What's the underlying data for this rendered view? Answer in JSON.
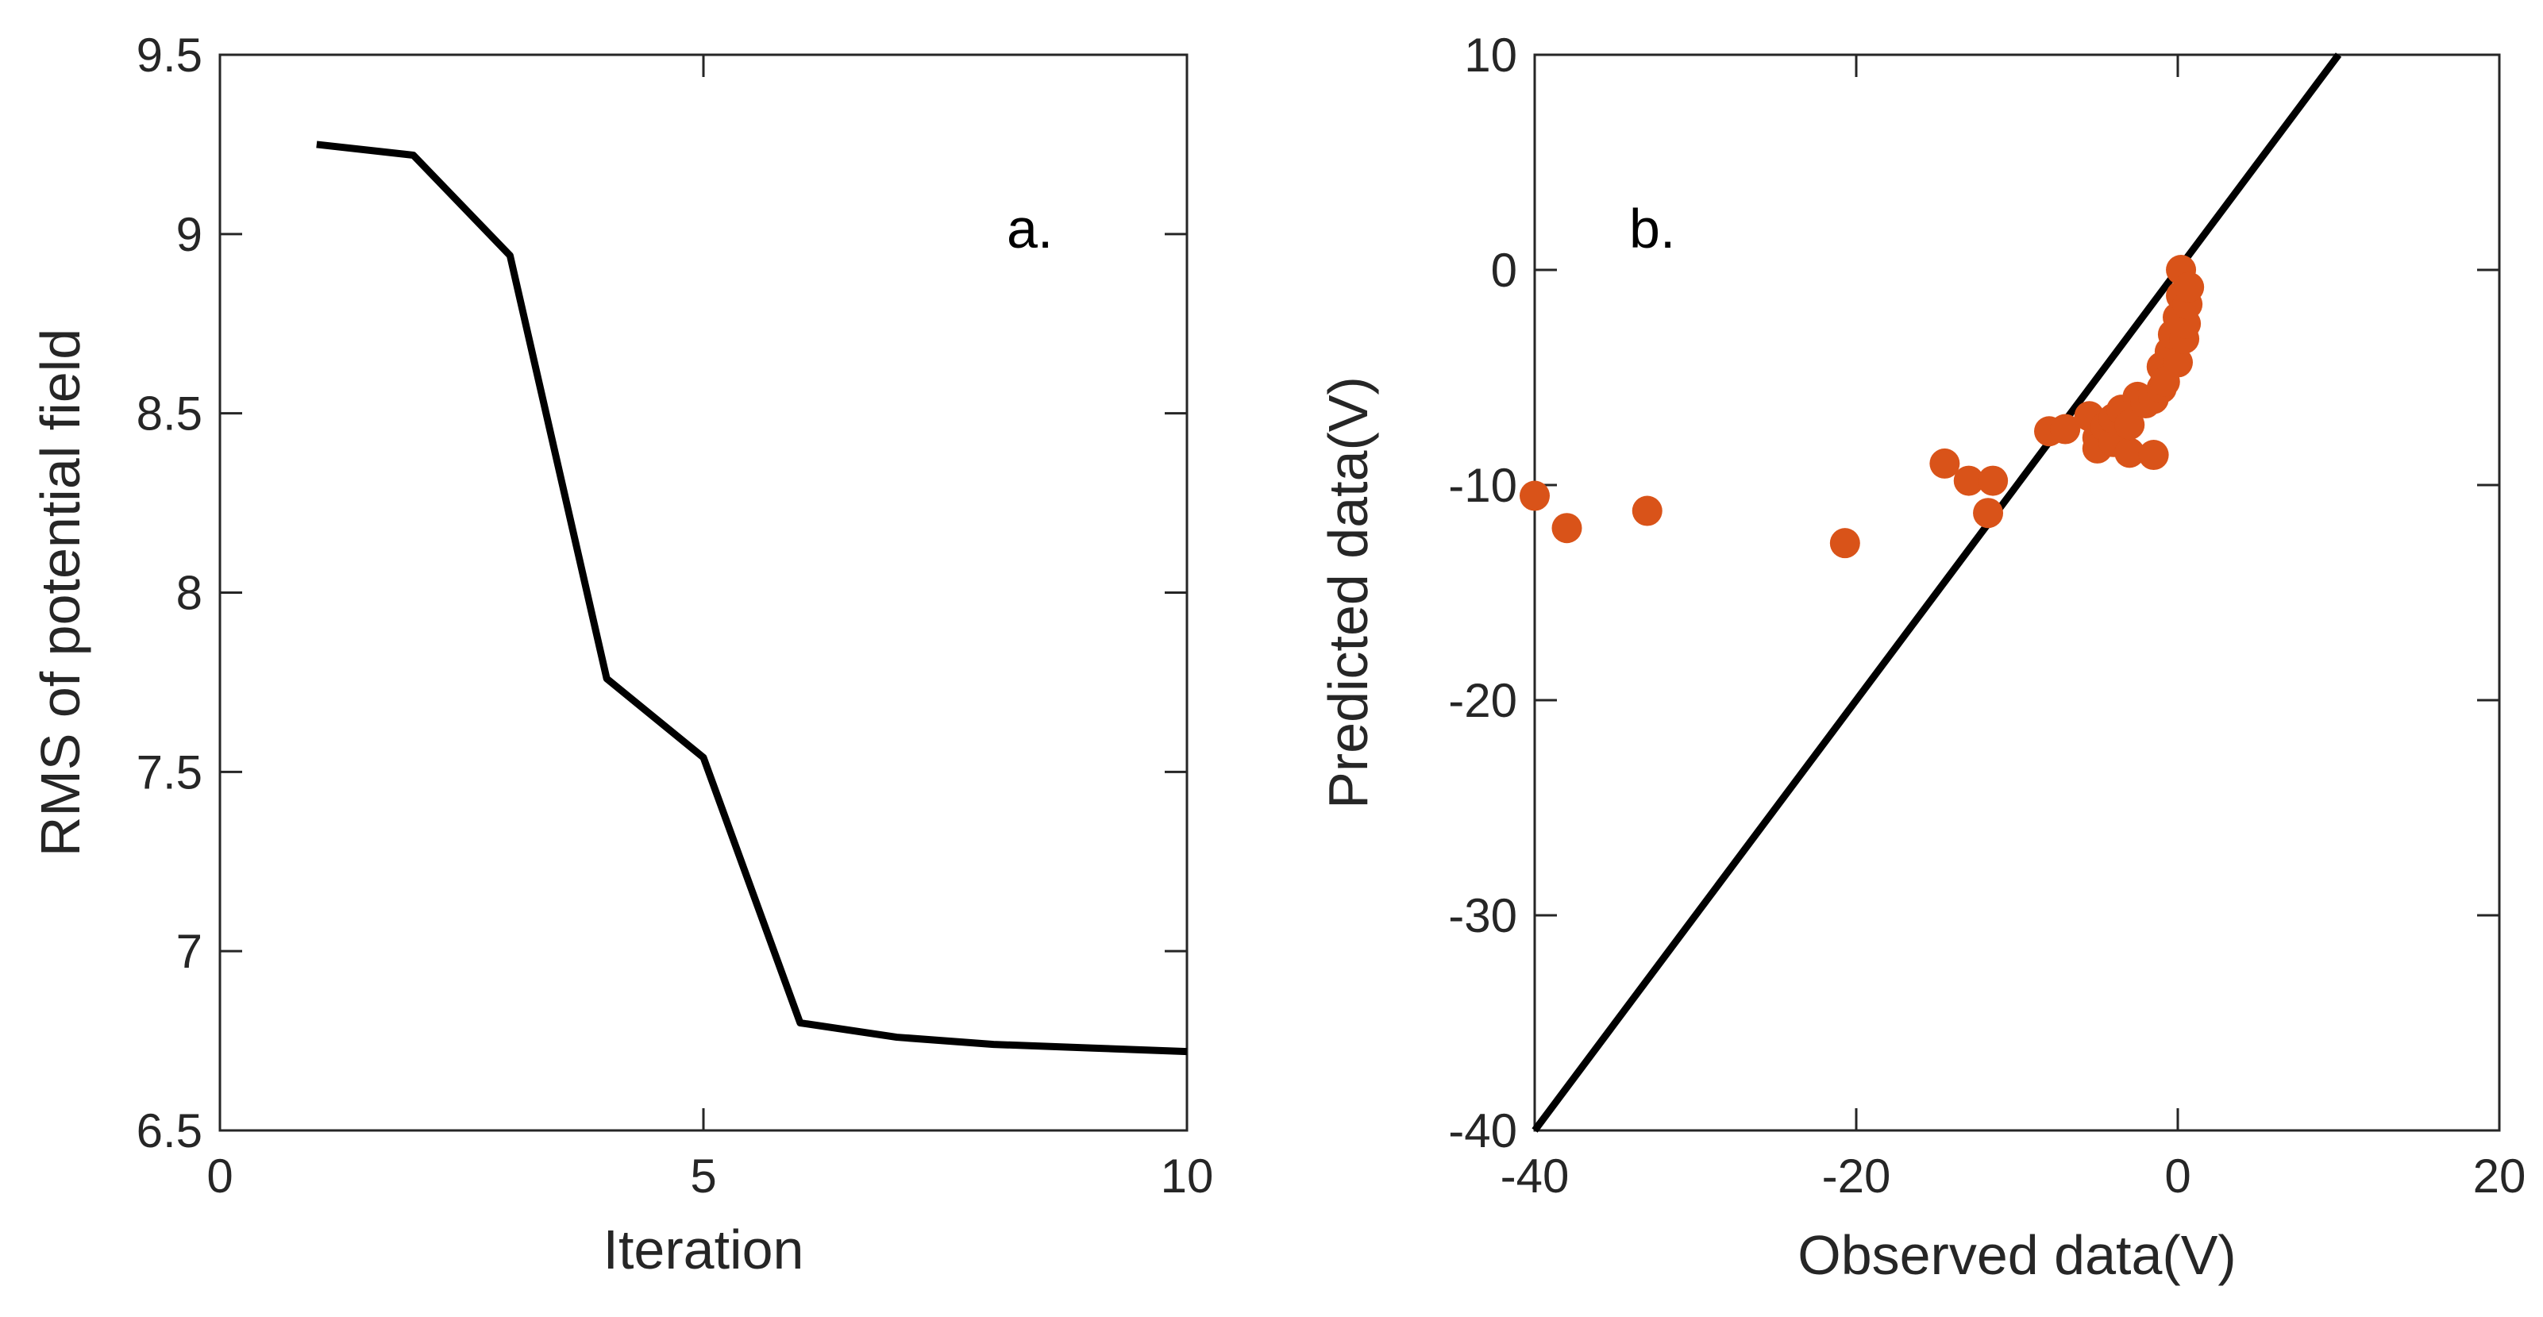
{
  "chart_data": [
    {
      "type": "line",
      "panel_label": "a.",
      "xlabel": "Iteration",
      "ylabel": "RMS of potential field",
      "xlim": [
        0,
        10
      ],
      "ylim": [
        6.5,
        9.5
      ],
      "xticks": [
        0,
        5,
        10
      ],
      "xtick_labels": [
        "0",
        "5",
        "10"
      ],
      "yticks": [
        6.5,
        7,
        7.5,
        8,
        8.5,
        9,
        9.5
      ],
      "ytick_labels": [
        "6.5",
        "7",
        "7.5",
        "8",
        "8.5",
        "9",
        "9.5"
      ],
      "line_color": "#000000",
      "series": [
        {
          "name": "RMS",
          "x": [
            1,
            2,
            3,
            4,
            5,
            6,
            7,
            8,
            9,
            10
          ],
          "y": [
            9.25,
            9.22,
            8.94,
            7.76,
            7.54,
            6.8,
            6.76,
            6.74,
            6.73,
            6.72
          ]
        }
      ]
    },
    {
      "type": "scatter",
      "panel_label": "b.",
      "xlabel": "Observed data(V)",
      "ylabel": "Predicted data(V)",
      "xlim": [
        -40,
        20
      ],
      "ylim": [
        -40,
        10
      ],
      "xticks": [
        -40,
        -20,
        0,
        20
      ],
      "xtick_labels": [
        "-40",
        "-20",
        "0",
        "20"
      ],
      "yticks": [
        -40,
        -30,
        -20,
        -10,
        0,
        10
      ],
      "ytick_labels": [
        "-40",
        "-30",
        "-20",
        "-10",
        "0",
        "10"
      ],
      "reference_line": {
        "x": [
          -40,
          10
        ],
        "y": [
          -40,
          10
        ],
        "color": "#000000"
      },
      "marker_color": "#D95319",
      "points": [
        {
          "x": -40.0,
          "y": -10.5
        },
        {
          "x": -38.0,
          "y": -12.0
        },
        {
          "x": -33.0,
          "y": -11.2
        },
        {
          "x": -20.7,
          "y": -12.7
        },
        {
          "x": -14.5,
          "y": -9.0
        },
        {
          "x": -13.0,
          "y": -9.8
        },
        {
          "x": -11.8,
          "y": -11.3
        },
        {
          "x": -11.5,
          "y": -9.8
        },
        {
          "x": -8.0,
          "y": -7.5
        },
        {
          "x": -7.0,
          "y": -7.4
        },
        {
          "x": -5.5,
          "y": -6.8
        },
        {
          "x": -5.0,
          "y": -7.8
        },
        {
          "x": -5.0,
          "y": -8.3
        },
        {
          "x": -4.5,
          "y": -7.3
        },
        {
          "x": -4.0,
          "y": -8.0
        },
        {
          "x": -4.0,
          "y": -6.9
        },
        {
          "x": -3.5,
          "y": -6.5
        },
        {
          "x": -3.0,
          "y": -8.5
        },
        {
          "x": -3.0,
          "y": -7.2
        },
        {
          "x": -2.5,
          "y": -5.9
        },
        {
          "x": -2.0,
          "y": -6.2
        },
        {
          "x": -1.5,
          "y": -6.0
        },
        {
          "x": -1.5,
          "y": -8.6
        },
        {
          "x": -1.0,
          "y": -5.5
        },
        {
          "x": -1.0,
          "y": -4.5
        },
        {
          "x": -0.8,
          "y": -5.2
        },
        {
          "x": -0.5,
          "y": -3.8
        },
        {
          "x": -0.3,
          "y": -3.0
        },
        {
          "x": 0.0,
          "y": -4.3
        },
        {
          "x": 0.0,
          "y": -2.2
        },
        {
          "x": 0.2,
          "y": -1.2
        },
        {
          "x": 0.2,
          "y": 0.0
        },
        {
          "x": 0.4,
          "y": -3.2
        },
        {
          "x": 0.5,
          "y": -2.5
        },
        {
          "x": 0.6,
          "y": -1.6
        },
        {
          "x": 0.7,
          "y": -0.8
        }
      ]
    }
  ]
}
